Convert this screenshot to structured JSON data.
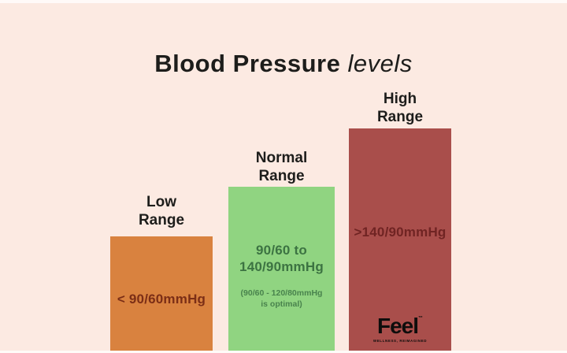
{
  "title": {
    "main": "Blood Pressure",
    "suffix": "levels"
  },
  "bars": [
    {
      "id": "low",
      "label": "Low\nRange",
      "value": "< 90/60mmHg",
      "note": "",
      "bar_color": "#d9823f",
      "value_color": "#7b2e16"
    },
    {
      "id": "normal",
      "label": "Normal\nRange",
      "value": "90/60 to\n140/90mmHg",
      "note": "(90/60 - 120/80mmHg\nis optimal)",
      "bar_color": "#90d481",
      "value_color": "#3c7342",
      "note_color": "#49834d"
    },
    {
      "id": "high",
      "label": "High\nRange",
      "value": ">140/90mmHg",
      "note": "",
      "bar_color": "#a94e4b",
      "value_color": "#702423"
    }
  ],
  "brand": {
    "name": "Feel",
    "tm": "™",
    "tagline": "WELLNESS, REIMAGINED"
  },
  "colors": {
    "background": "#fceae2",
    "heading_text": "#1d1d1b"
  },
  "chart_data": {
    "type": "bar",
    "title": "Blood Pressure levels",
    "categories": [
      "Low Range",
      "Normal Range",
      "High Range"
    ],
    "series": [
      {
        "name": "relative_bar_height_px",
        "values": [
          145,
          208,
          282
        ]
      }
    ],
    "bar_value_labels": [
      "< 90/60mmHg",
      "90/60 to 140/90mmHg",
      ">140/90mmHg"
    ],
    "annotations": [
      "",
      "(90/60 - 120/80mmHg is optimal)",
      ""
    ],
    "bar_colors": [
      "#d9823f",
      "#90d481",
      "#a94e4b"
    ],
    "xlabel": "",
    "ylabel": "",
    "grid": false,
    "legend": false
  }
}
